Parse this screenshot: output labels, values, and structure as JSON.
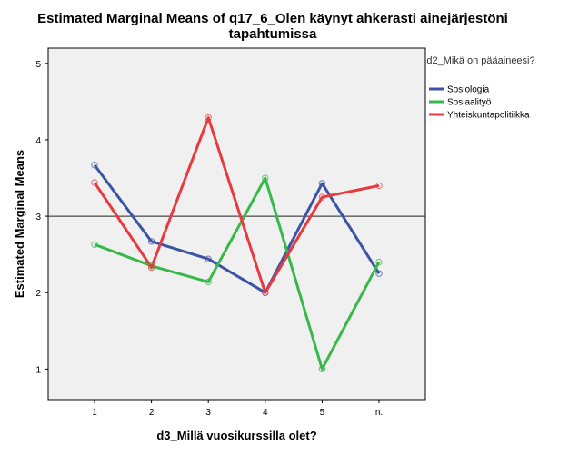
{
  "chart_data": {
    "type": "line",
    "title": "Estimated Marginal Means of q17_6_Olen käynyt ahkerasti ainejärjestöni tapahtumissa",
    "xlabel": "d3_Millä vuosikurssilla olet?",
    "ylabel": "Estimated Marginal Means",
    "categories": [
      "1",
      "2",
      "3",
      "4",
      "5",
      "n."
    ],
    "ylim": [
      0.6,
      5.2
    ],
    "yticks": [
      1,
      2,
      3,
      4,
      5
    ],
    "reference_line": 3,
    "legend_title": "d2_Mikä on pääaineesi?",
    "series": [
      {
        "name": "Sosiologia",
        "color": "#3c54a4",
        "values": [
          3.67,
          2.67,
          2.44,
          2.0,
          3.43,
          2.25
        ]
      },
      {
        "name": "Sosiaalityö",
        "color": "#38b84a",
        "values": [
          2.63,
          2.35,
          2.14,
          3.5,
          1.0,
          2.4
        ]
      },
      {
        "name": "Yhteiskuntapolitiikka",
        "color": "#e8393f",
        "values": [
          3.44,
          2.33,
          4.29,
          2.0,
          3.25,
          3.4
        ]
      }
    ]
  }
}
